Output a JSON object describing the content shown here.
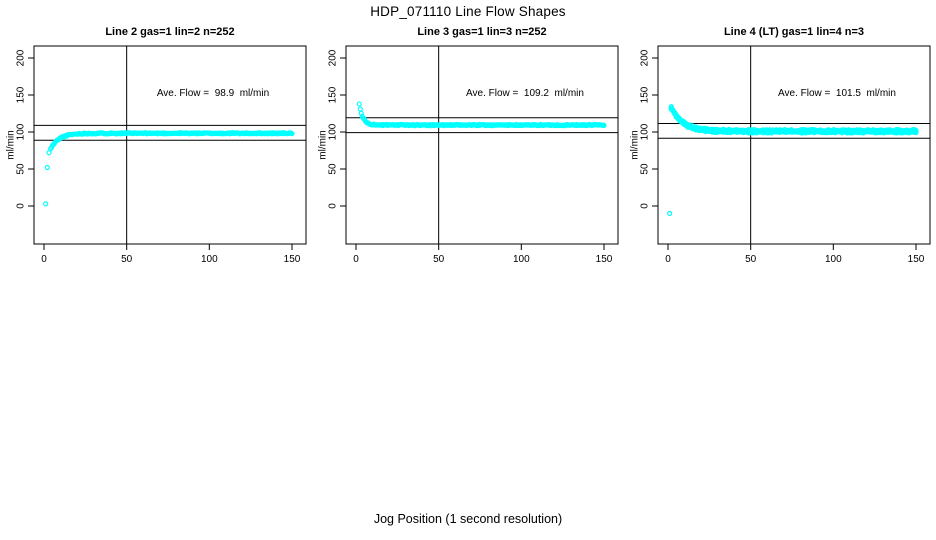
{
  "figure": {
    "title": "HDP_071110  Line Flow Shapes",
    "xlabel": "Jog Position (1 second resolution)",
    "background": "#FFFFFF"
  },
  "chart_data": {
    "type": "scatter",
    "title": "HDP_071110  Line Flow Shapes",
    "xlabel": "Jog Position (1 second resolution)",
    "ylabel": "ml/min",
    "point_color": "#00FFFF",
    "line_color": "#000000",
    "grid": false,
    "legend": "none",
    "x_ticks": [
      0,
      50,
      100,
      150
    ],
    "y_ticks": [
      0,
      50,
      100,
      150,
      200
    ],
    "xlim": [
      -6,
      158
    ],
    "ylim": [
      -52,
      216
    ],
    "panels": [
      {
        "title": "Line 2 gas=1 lin=2 n=252",
        "annotation": "Ave. Flow =  98.9  ml/min",
        "ave_flow": 98.9,
        "n": 252,
        "hlines": [
          108.9,
          88.9
        ],
        "vline": 50,
        "outliers": [
          [
            1,
            3
          ],
          [
            2,
            52
          ],
          [
            3,
            72
          ]
        ],
        "curve": {
          "x_start": 4,
          "x_end": 150,
          "n": 249,
          "asymptote": 98.3,
          "amplitude": -21.3,
          "tau": 5.0,
          "jitter": 0.8,
          "runs": 1,
          "run_offset": 0,
          "seed": 11
        },
        "sample_points": [
          [
            1,
            3
          ],
          [
            2,
            52
          ],
          [
            3,
            72
          ],
          [
            4,
            77
          ],
          [
            6,
            84
          ],
          [
            8,
            87
          ],
          [
            10,
            90
          ],
          [
            15,
            93
          ],
          [
            20,
            96
          ],
          [
            30,
            97.5
          ],
          [
            50,
            98
          ],
          [
            75,
            98.5
          ],
          [
            100,
            98.5
          ],
          [
            125,
            98.5
          ],
          [
            150,
            98.5
          ]
        ]
      },
      {
        "title": "Line 3 gas=1 lin=3 n=252",
        "annotation": "Ave. Flow =  109.2  ml/min",
        "ave_flow": 109.2,
        "n": 252,
        "hlines": [
          119.2,
          99.2
        ],
        "vline": 50,
        "outliers": [],
        "curve": {
          "x_start": 2,
          "x_end": 150,
          "n": 252,
          "asymptote": 109.4,
          "amplitude": 28,
          "tau": 2.2,
          "jitter": 0.8,
          "runs": 1,
          "run_offset": 0,
          "seed": 23
        },
        "sample_points": [
          [
            2,
            137
          ],
          [
            3,
            127
          ],
          [
            4,
            120
          ],
          [
            5,
            116
          ],
          [
            6,
            114
          ],
          [
            8,
            111
          ],
          [
            10,
            110
          ],
          [
            15,
            109.5
          ],
          [
            25,
            109.5
          ],
          [
            50,
            109.5
          ],
          [
            100,
            109.5
          ],
          [
            150,
            109.5
          ]
        ]
      },
      {
        "title": "Line 4 (LT) gas=1 lin=4 n=3",
        "annotation": "Ave. Flow =  101.5  ml/min",
        "ave_flow": 101.5,
        "n": 3,
        "hlines": [
          111.5,
          91.5
        ],
        "vline": 50,
        "outliers": [
          [
            1,
            -10
          ]
        ],
        "curve": {
          "x_start": 2,
          "x_end": 150,
          "n": 150,
          "asymptote": 101.0,
          "amplitude": 32,
          "tau": 7.0,
          "jitter": 1.0,
          "runs": 3,
          "run_offset": 1.3,
          "seed": 37
        },
        "sample_points": [
          [
            1,
            -10
          ],
          [
            2,
            133
          ],
          [
            5,
            122
          ],
          [
            10,
            110
          ],
          [
            15,
            105
          ],
          [
            20,
            103
          ],
          [
            25,
            102
          ],
          [
            30,
            101.5
          ],
          [
            50,
            101
          ],
          [
            100,
            101
          ],
          [
            150,
            101
          ]
        ]
      }
    ]
  }
}
